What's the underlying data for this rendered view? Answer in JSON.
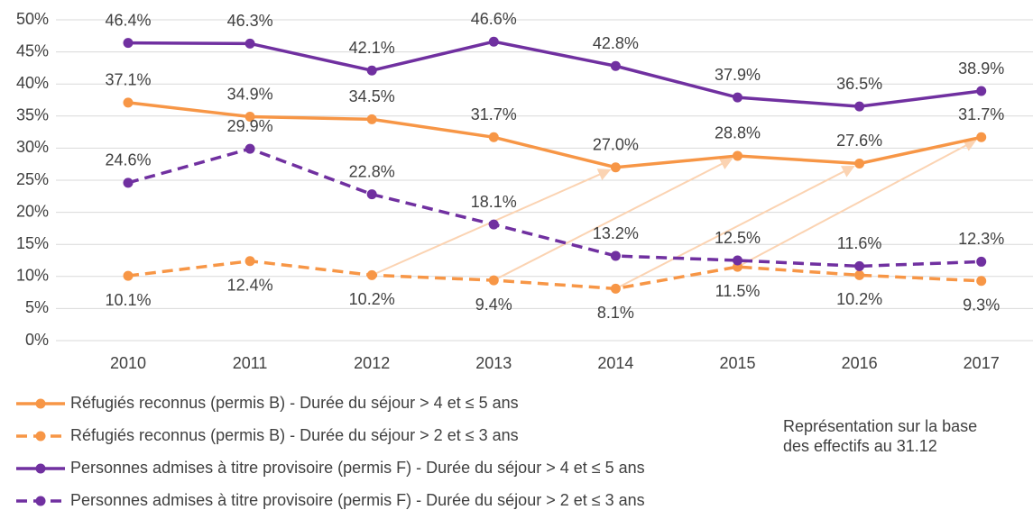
{
  "chart_data": {
    "type": "line",
    "categories": [
      "2010",
      "2011",
      "2012",
      "2013",
      "2014",
      "2015",
      "2016",
      "2017"
    ],
    "series": [
      {
        "name": "Réfugiés reconnus (permis B) - Durée du séjour > 4 et ≤ 5 ans",
        "color": "#f79646",
        "dashed": false,
        "values": [
          37.1,
          34.9,
          34.5,
          31.7,
          27.0,
          28.8,
          27.6,
          31.7
        ],
        "value_labels": [
          "37.1%",
          "34.9%",
          "34.5%",
          "31.7%",
          "27.0%",
          "28.8%",
          "27.6%",
          "31.7%"
        ]
      },
      {
        "name": "Réfugiés reconnus (permis B) - Durée du séjour > 2 et ≤ 3 ans",
        "color": "#f79646",
        "dashed": true,
        "values": [
          10.1,
          12.4,
          10.2,
          9.4,
          8.1,
          11.5,
          10.2,
          9.3
        ],
        "value_labels": [
          "10.1%",
          "12.4%",
          "10.2%",
          "9.4%",
          "8.1%",
          "11.5%",
          "10.2%",
          "9.3%"
        ]
      },
      {
        "name": "Personnes admises à titre provisoire (permis F) - Durée du séjour > 4 et ≤ 5 ans",
        "color": "#7030a0",
        "dashed": false,
        "values": [
          46.4,
          46.3,
          42.1,
          46.6,
          42.8,
          37.9,
          36.5,
          38.9
        ],
        "value_labels": [
          "46.4%",
          "46.3%",
          "42.1%",
          "46.6%",
          "42.8%",
          "37.9%",
          "36.5%",
          "38.9%"
        ]
      },
      {
        "name": "Personnes admises à titre provisoire (permis F) - Durée du séjour > 2 et ≤ 3 ans",
        "color": "#7030a0",
        "dashed": true,
        "values": [
          24.6,
          29.9,
          22.8,
          18.1,
          13.2,
          12.5,
          11.6,
          12.3
        ],
        "value_labels": [
          "24.6%",
          "29.9%",
          "22.8%",
          "18.1%",
          "13.2%",
          "12.5%",
          "11.6%",
          "12.3%"
        ]
      }
    ],
    "ylim": [
      0,
      50
    ],
    "yticks": [
      {
        "value": 0,
        "label": "0%"
      },
      {
        "value": 5,
        "label": "5%"
      },
      {
        "value": 10,
        "label": "10%"
      },
      {
        "value": 15,
        "label": "15%"
      },
      {
        "value": 20,
        "label": "20%"
      },
      {
        "value": 25,
        "label": "25%"
      },
      {
        "value": 30,
        "label": "30%"
      },
      {
        "value": 35,
        "label": "35%"
      },
      {
        "value": 40,
        "label": "40%"
      },
      {
        "value": 45,
        "label": "45%"
      },
      {
        "value": 50,
        "label": "50%"
      }
    ],
    "grid": true,
    "annotation": "Représentation sur la base des effectifs au 31.12"
  }
}
